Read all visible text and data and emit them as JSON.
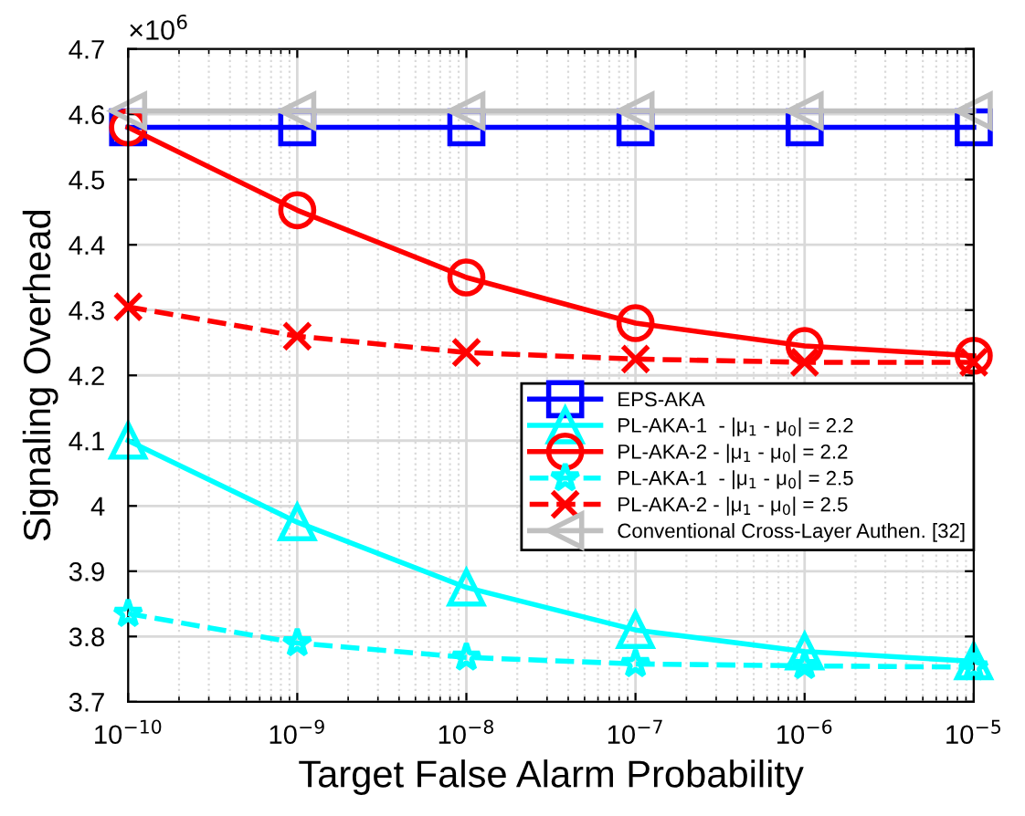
{
  "chart_data": {
    "type": "line",
    "xlabel": "Target False Alarm Probability",
    "ylabel": "Signaling Overhead",
    "x": [
      1e-10,
      1e-09,
      1e-08,
      1e-07,
      1e-06,
      1e-05
    ],
    "log": "x",
    "xlim": [
      1e-10,
      1e-05
    ],
    "xticks": [
      {
        "value": 1e-10,
        "label": "10$^{−10}$"
      },
      {
        "value": 1e-09,
        "label": "10$^{−9}$"
      },
      {
        "value": 1e-08,
        "label": "10$^{−8}$"
      },
      {
        "value": 1e-07,
        "label": "10$^{−7}$"
      },
      {
        "value": 1e-06,
        "label": "10$^{−6}$"
      },
      {
        "value": 1e-05,
        "label": "10$^{−5}$"
      }
    ],
    "ylim": [
      3.7,
      4.7
    ],
    "yticks": [
      {
        "value": 3.7,
        "label": "3.7"
      },
      {
        "value": 3.8,
        "label": "3.8"
      },
      {
        "value": 3.9,
        "label": "3.9"
      },
      {
        "value": 4.0,
        "label": "4"
      },
      {
        "value": 4.1,
        "label": "4.1"
      },
      {
        "value": 4.2,
        "label": "4.2"
      },
      {
        "value": 4.3,
        "label": "4.3"
      },
      {
        "value": 4.4,
        "label": "4.4"
      },
      {
        "value": 4.5,
        "label": "4.5"
      },
      {
        "value": 4.6,
        "label": "4.6"
      },
      {
        "value": 4.7,
        "label": "4.7"
      }
    ],
    "annotations": [
      "×10$^{6}$"
    ],
    "grid": true,
    "legend": "right",
    "series": [
      {
        "name": "EPS-AKA",
        "color": "#0000ff",
        "marker": "square",
        "line_style": "solid",
        "values": [
          4.58,
          4.58,
          4.58,
          4.58,
          4.58,
          4.58
        ]
      },
      {
        "name": "PL-AKA-1  - |μ$_{1}$ - μ$_{0}$| = 2.2",
        "color": "#00ffff",
        "marker": "triangle",
        "line_style": "solid",
        "values": [
          4.1,
          3.975,
          3.875,
          3.81,
          3.777,
          3.762
        ]
      },
      {
        "name": "PL-AKA-2 - |μ$_{1}$ - μ$_{0}$| = 2.2",
        "color": "#ff0000",
        "marker": "circle",
        "line_style": "solid",
        "values": [
          4.58,
          4.453,
          4.35,
          4.28,
          4.245,
          4.23
        ]
      },
      {
        "name": "PL-AKA-1  - |μ$_{1}$ - μ$_{0}$| = 2.5",
        "color": "#00ffff",
        "marker": "star",
        "line_style": "dashed",
        "values": [
          3.835,
          3.79,
          3.768,
          3.758,
          3.755,
          3.753
        ]
      },
      {
        "name": "PL-AKA-2 - |μ$_{1}$ - μ$_{0}$| = 2.5",
        "color": "#ff0000",
        "marker": "cross",
        "line_style": "dashed",
        "values": [
          4.305,
          4.26,
          4.235,
          4.225,
          4.22,
          4.22
        ]
      },
      {
        "name": "Conventional Cross-Layer Authen. [32]",
        "color": "#c0c0c0",
        "marker": "triangle-left",
        "line_style": "solid",
        "values": [
          4.605,
          4.605,
          4.605,
          4.605,
          4.605,
          4.605
        ]
      }
    ]
  }
}
